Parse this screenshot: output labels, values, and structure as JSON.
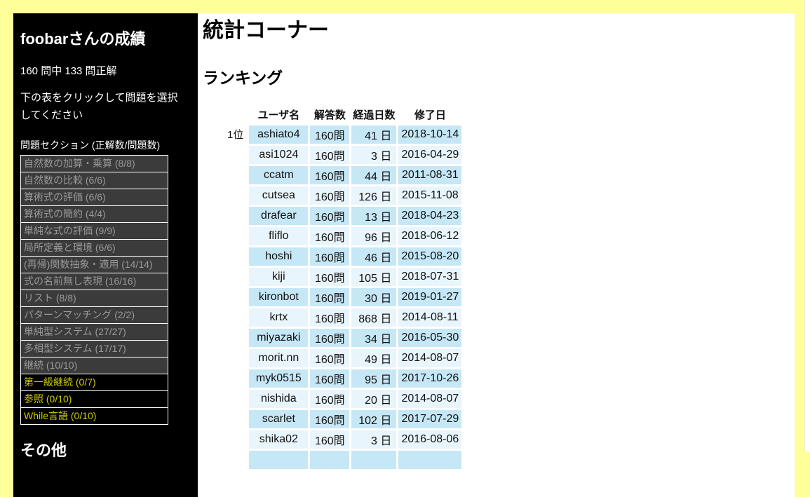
{
  "colors": {
    "page_background": "#ffff99",
    "sidebar_background": "#000000",
    "content_background": "#ffffff",
    "row_alt_dark": "#c6e7f6",
    "row_alt_light": "#e9f5fc",
    "section_done_bg": "#3b3b3b",
    "section_done_text": "#9a9a9a",
    "section_todo_bg": "#000000",
    "section_todo_text": "#cccc00",
    "section_border": "#ffffff"
  },
  "sidebar": {
    "title": "foobarさんの成績",
    "score_line": "160 問中 133 問正解",
    "instruction": "下の表をクリックして問題を選択してください",
    "sections_header": "問題セクション (正解数/問題数)",
    "sections": [
      {
        "label": "自然数の加算・乗算 (8/8)",
        "state": "done"
      },
      {
        "label": "自然数の比較 (6/6)",
        "state": "done"
      },
      {
        "label": "算術式の評価 (6/6)",
        "state": "done"
      },
      {
        "label": "算術式の簡約 (4/4)",
        "state": "done"
      },
      {
        "label": "単純な式の評価 (9/9)",
        "state": "done"
      },
      {
        "label": "局所定義と環境 (6/6)",
        "state": "done"
      },
      {
        "label": "(再帰)関数抽象・適用 (14/14)",
        "state": "done"
      },
      {
        "label": "式の名前無し表現 (16/16)",
        "state": "done"
      },
      {
        "label": "リスト (8/8)",
        "state": "done"
      },
      {
        "label": "パターンマッチング (2/2)",
        "state": "done"
      },
      {
        "label": "単純型システム (27/27)",
        "state": "done"
      },
      {
        "label": "多相型システム (17/17)",
        "state": "done"
      },
      {
        "label": "継続 (10/10)",
        "state": "done"
      },
      {
        "label": "第一級継続 (0/7)",
        "state": "todo"
      },
      {
        "label": "参照 (0/10)",
        "state": "todo"
      },
      {
        "label": "While言語 (0/10)",
        "state": "todo"
      }
    ],
    "footer_heading": "その他"
  },
  "main": {
    "title": "統計コーナー",
    "section_title": "ランキング",
    "ranking": {
      "columns": [
        "ユーザ名",
        "解答数",
        "経過日数",
        "修了日"
      ],
      "rows": [
        {
          "rank": "1位",
          "user": "ashiato4",
          "answers": "160問",
          "days": "41 日",
          "date": "2018-10-14"
        },
        {
          "rank": "",
          "user": "asi1024",
          "answers": "160問",
          "days": "3 日",
          "date": "2016-04-29"
        },
        {
          "rank": "",
          "user": "ccatm",
          "answers": "160問",
          "days": "44 日",
          "date": "2011-08-31"
        },
        {
          "rank": "",
          "user": "cutsea",
          "answers": "160問",
          "days": "126 日",
          "date": "2015-11-08"
        },
        {
          "rank": "",
          "user": "drafear",
          "answers": "160問",
          "days": "13 日",
          "date": "2018-04-23"
        },
        {
          "rank": "",
          "user": "fliflo",
          "answers": "160問",
          "days": "96 日",
          "date": "2018-06-12"
        },
        {
          "rank": "",
          "user": "hoshi",
          "answers": "160問",
          "days": "46 日",
          "date": "2015-08-20"
        },
        {
          "rank": "",
          "user": "kiji",
          "answers": "160問",
          "days": "105 日",
          "date": "2018-07-31"
        },
        {
          "rank": "",
          "user": "kironbot",
          "answers": "160問",
          "days": "30 日",
          "date": "2019-01-27"
        },
        {
          "rank": "",
          "user": "krtx",
          "answers": "160問",
          "days": "868 日",
          "date": "2014-08-11"
        },
        {
          "rank": "",
          "user": "miyazaki",
          "answers": "160問",
          "days": "34 日",
          "date": "2016-05-30"
        },
        {
          "rank": "",
          "user": "morit.nn",
          "answers": "160問",
          "days": "49 日",
          "date": "2014-08-07"
        },
        {
          "rank": "",
          "user": "myk0515",
          "answers": "160問",
          "days": "95 日",
          "date": "2017-10-26"
        },
        {
          "rank": "",
          "user": "nishida",
          "answers": "160問",
          "days": "20 日",
          "date": "2014-08-07"
        },
        {
          "rank": "",
          "user": "scarlet",
          "answers": "160問",
          "days": "102 日",
          "date": "2017-07-29"
        },
        {
          "rank": "",
          "user": "shika02",
          "answers": "160問",
          "days": "3 日",
          "date": "2016-08-06"
        }
      ],
      "next_row_partially_visible": true
    }
  }
}
